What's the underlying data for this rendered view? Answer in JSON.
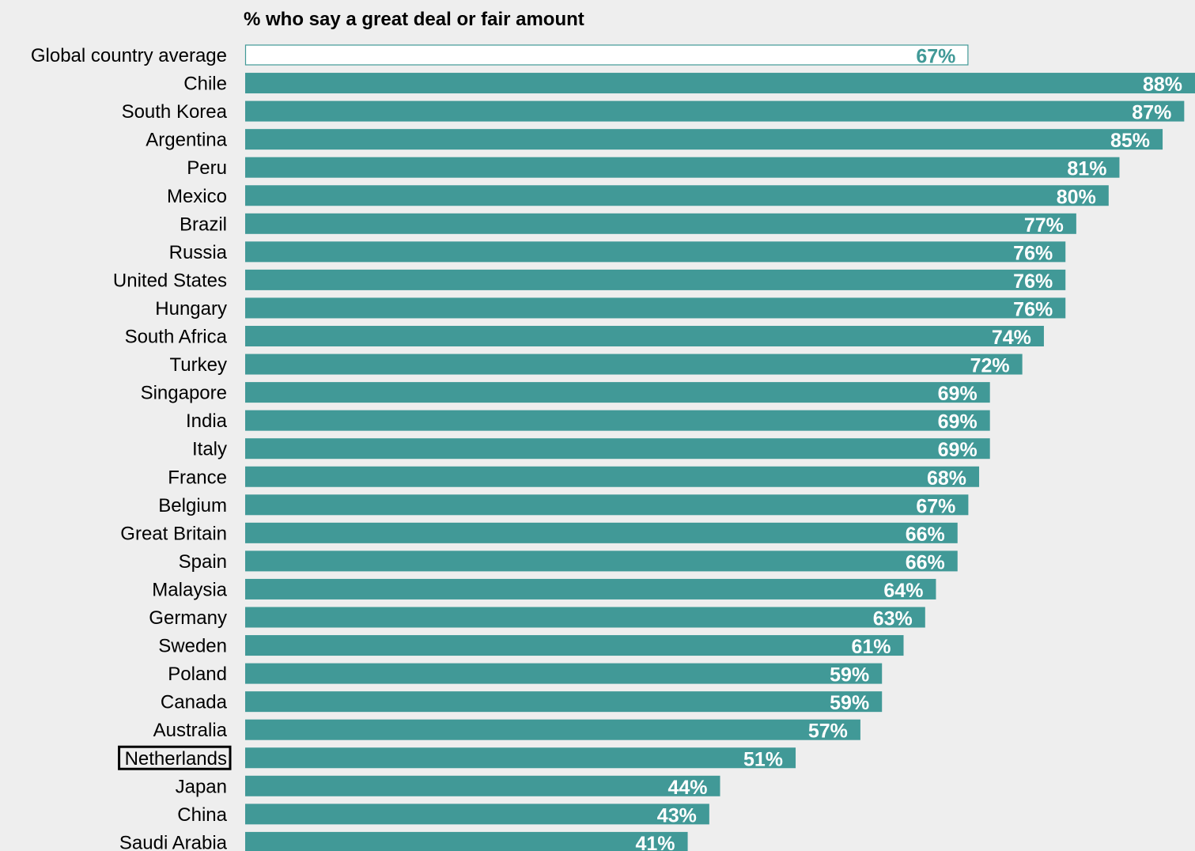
{
  "chart_data": {
    "type": "bar",
    "orientation": "horizontal",
    "title": "% who say a great deal or fair amount",
    "categories": [
      "Global country average",
      "Chile",
      "South Korea",
      "Argentina",
      "Peru",
      "Mexico",
      "Brazil",
      "Russia",
      "United States",
      "Hungary",
      "South Africa",
      "Turkey",
      "Singapore",
      "India",
      "Italy",
      "France",
      "Belgium",
      "Great Britain",
      "Spain",
      "Malaysia",
      "Germany",
      "Sweden",
      "Poland",
      "Canada",
      "Australia",
      "Netherlands",
      "Japan",
      "China",
      "Saudi Arabia"
    ],
    "values": [
      67,
      88,
      87,
      85,
      81,
      80,
      77,
      76,
      76,
      76,
      74,
      72,
      69,
      69,
      69,
      68,
      67,
      66,
      66,
      64,
      63,
      61,
      59,
      59,
      57,
      51,
      44,
      43,
      41
    ],
    "value_labels": [
      "67%",
      "88%",
      "87%",
      "85%",
      "81%",
      "80%",
      "77%",
      "76%",
      "76%",
      "76%",
      "74%",
      "72%",
      "69%",
      "69%",
      "69%",
      "68%",
      "67%",
      "66%",
      "66%",
      "64%",
      "63%",
      "61%",
      "59%",
      "59%",
      "57%",
      "51%",
      "44%",
      "43%",
      "41%"
    ],
    "highlighted_category": "Netherlands",
    "outlined_bar_category": "Global country average",
    "xlim": [
      0,
      88
    ],
    "grid": false,
    "legend": "none",
    "colors": {
      "bar": "#419997",
      "average_bar_fill": "#ffffff",
      "average_label": "#419997",
      "bar_label": "#ffffff",
      "background": "#eeeeee"
    }
  }
}
